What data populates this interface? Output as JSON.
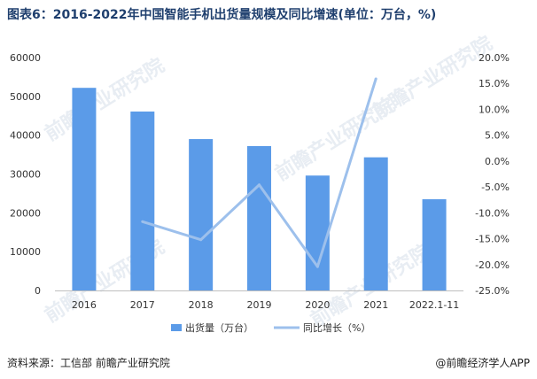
{
  "title": "图表6：2016-2022年中国智能手机出货量规模及同比增速(单位：万台，%)",
  "source": "资料来源：工信部 前瞻产业研究院",
  "credit": "@前瞻经济学人APP",
  "watermark": "前瞻产业研究院",
  "chart_data": {
    "type": "bar",
    "categories": [
      "2016",
      "2017",
      "2018",
      "2019",
      "2020",
      "2021",
      "2022.1-11"
    ],
    "series": [
      {
        "name": "出货量（万台）",
        "type": "bar",
        "axis": "left",
        "color": "#5b9be8",
        "values": [
          52200,
          46100,
          39000,
          37200,
          29600,
          34300,
          23500
        ]
      },
      {
        "name": "同比增长（%）",
        "type": "line",
        "axis": "right",
        "color": "#9dc0ec",
        "values": [
          null,
          -11.7,
          -15.2,
          -4.6,
          -20.4,
          15.9,
          null
        ]
      }
    ],
    "y_left": {
      "min": 0,
      "max": 60000,
      "step": 10000,
      "ticks": [
        "0",
        "10000",
        "20000",
        "30000",
        "40000",
        "50000",
        "60000"
      ]
    },
    "y_right": {
      "min": -25,
      "max": 20,
      "step": 5,
      "ticks": [
        "-25.0%",
        "-20.0%",
        "-15.0%",
        "-10.0%",
        "-5.0%",
        "0.0%",
        "5.0%",
        "10.0%",
        "15.0%",
        "20.0%"
      ]
    },
    "legend_position": "bottom",
    "grid": false
  }
}
